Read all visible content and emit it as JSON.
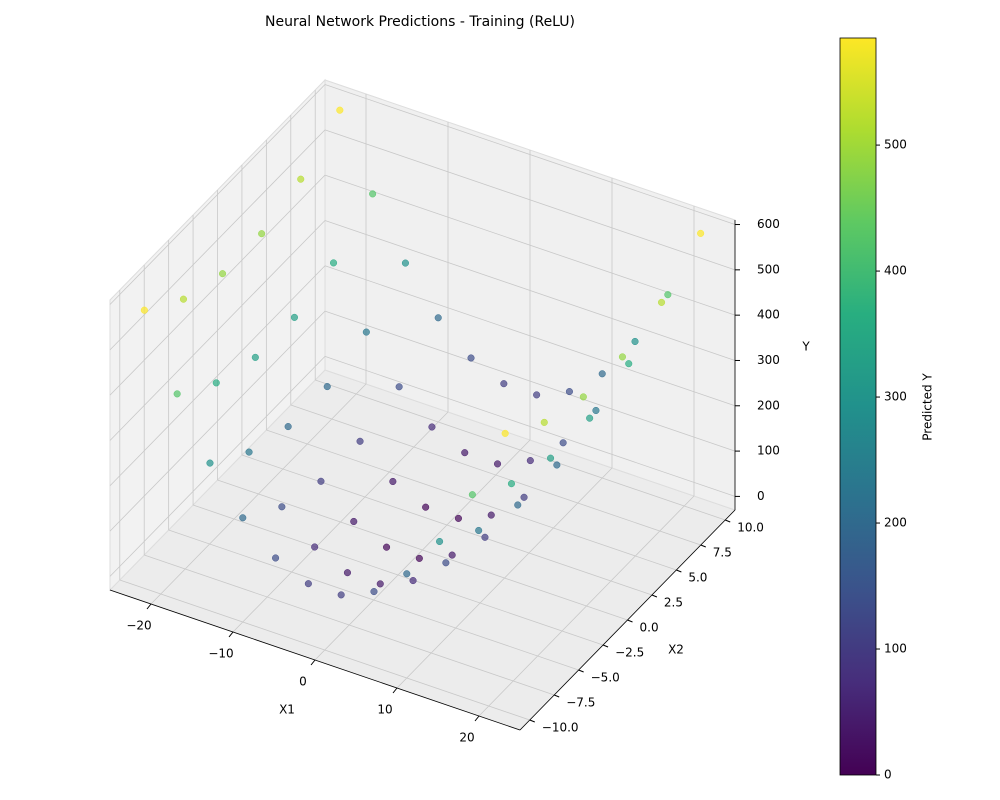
{
  "chart_data": {
    "type": "scatter3d",
    "title": "Neural Network Predictions - Training (ReLU)",
    "xlabel": "X1",
    "ylabel": "X2",
    "zlabel": "Y",
    "colorbar_label": "Predicted Y",
    "colormap": "viridis",
    "clim": [
      0,
      585
    ],
    "cticks": [
      0,
      100,
      200,
      300,
      400,
      500
    ],
    "xlim": [
      -25,
      25
    ],
    "xticks": [
      {
        "value": -20,
        "label": "−20"
      },
      {
        "value": -10,
        "label": "−10"
      },
      0,
      10,
      20
    ],
    "ylim": [
      -11,
      11
    ],
    "yticks": [
      {
        "value": -10,
        "label": "−10.0"
      },
      {
        "value": -7.5,
        "label": "−7.5"
      },
      {
        "value": -5,
        "label": "−5.0"
      },
      {
        "value": -2.5,
        "label": "−2.5"
      },
      {
        "value": 0,
        "label": "0.0"
      },
      {
        "value": 2.5,
        "label": "2.5"
      },
      {
        "value": 5,
        "label": "5.0"
      },
      {
        "value": 7.5,
        "label": "7.5"
      },
      {
        "value": 10,
        "label": "10.0"
      }
    ],
    "zlim": [
      -30,
      610
    ],
    "zticks": [
      0,
      100,
      200,
      300,
      400,
      500,
      600
    ],
    "grid": true,
    "x": [
      -22,
      -18,
      -14,
      -10,
      -6,
      -2,
      2,
      6,
      10,
      14,
      18,
      22,
      -22,
      -18,
      -14,
      -10,
      -6,
      -2,
      2,
      6,
      10,
      14,
      18,
      22,
      -22,
      -18,
      -14,
      -10,
      -6,
      -2,
      2,
      6,
      10,
      14,
      18,
      22,
      -22,
      -18,
      -14,
      -10,
      -6,
      -2,
      2,
      6,
      10,
      14,
      18,
      22,
      -22,
      -18,
      -14,
      -10,
      -6,
      -2,
      2,
      6,
      10,
      14,
      18,
      22,
      -22,
      -18,
      -14,
      -10,
      -6,
      -2,
      2,
      6,
      10,
      14,
      18,
      22
    ],
    "y": [
      -10,
      -10,
      -10,
      -10,
      -10,
      -10,
      -10,
      -10,
      -10,
      -10,
      -10,
      -10,
      -6,
      -6,
      -6,
      -6,
      -6,
      -6,
      -6,
      -6,
      -6,
      -6,
      -6,
      -6,
      -2,
      -2,
      -2,
      -2,
      -2,
      -2,
      -2,
      -2,
      -2,
      -2,
      -2,
      -2,
      2,
      2,
      2,
      2,
      2,
      2,
      2,
      2,
      2,
      2,
      2,
      2,
      6,
      6,
      6,
      6,
      6,
      6,
      6,
      6,
      6,
      6,
      6,
      6,
      10,
      10,
      10,
      10,
      10,
      10,
      10,
      10,
      10,
      10,
      10,
      10
    ],
    "z": [
      584,
      424,
      296,
      200,
      136,
      104,
      104,
      136,
      200,
      296,
      424,
      584,
      520,
      360,
      232,
      136,
      72,
      40,
      40,
      72,
      136,
      232,
      360,
      520,
      488,
      328,
      200,
      104,
      40,
      8,
      8,
      40,
      104,
      200,
      328,
      488,
      488,
      328,
      200,
      104,
      40,
      8,
      8,
      40,
      104,
      200,
      328,
      488,
      520,
      360,
      232,
      136,
      72,
      40,
      40,
      72,
      136,
      232,
      360,
      520,
      584,
      424,
      296,
      200,
      136,
      104,
      104,
      136,
      200,
      296,
      424,
      584
    ]
  }
}
